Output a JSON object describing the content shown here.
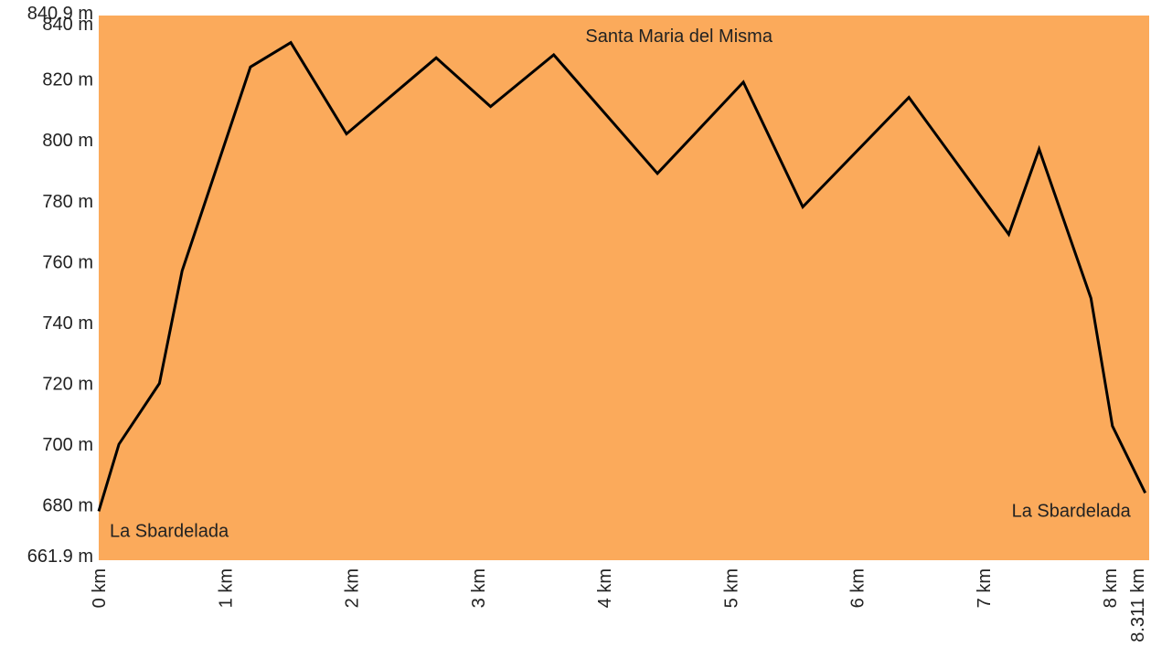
{
  "chart_data": {
    "type": "area",
    "title": "",
    "xlabel": "",
    "ylabel": "",
    "xlim": [
      0,
      8.311
    ],
    "ylim": [
      661.9,
      840.9
    ],
    "colors": {
      "fill": "#FBAA5B",
      "line": "#000000",
      "text": "#222222"
    },
    "y_ticks": [
      {
        "value": 840.9,
        "label": "840.9 m"
      },
      {
        "value": 840,
        "label": "840 m"
      },
      {
        "value": 820,
        "label": "820 m"
      },
      {
        "value": 800,
        "label": "800 m"
      },
      {
        "value": 780,
        "label": "780 m"
      },
      {
        "value": 760,
        "label": "760 m"
      },
      {
        "value": 740,
        "label": "740 m"
      },
      {
        "value": 720,
        "label": "720 m"
      },
      {
        "value": 700,
        "label": "700 m"
      },
      {
        "value": 680,
        "label": "680 m"
      },
      {
        "value": 661.9,
        "label": "661.9 m"
      }
    ],
    "x_ticks": [
      {
        "value": 0,
        "label": "0 km"
      },
      {
        "value": 1,
        "label": "1 km"
      },
      {
        "value": 2,
        "label": "2 km"
      },
      {
        "value": 3,
        "label": "3 km"
      },
      {
        "value": 4,
        "label": "4 km"
      },
      {
        "value": 5,
        "label": "5 km"
      },
      {
        "value": 6,
        "label": "6 km"
      },
      {
        "value": 7,
        "label": "7 km"
      },
      {
        "value": 8,
        "label": "8 km"
      },
      {
        "value": 8.311,
        "label": "8.311 km"
      }
    ],
    "series": [
      {
        "x": [
          0,
          0.16,
          0.48,
          0.66,
          1.2,
          1.52,
          1.96,
          2.67,
          3.1,
          3.6,
          4.42,
          5.1,
          5.57,
          6.41,
          7.2,
          7.44,
          7.85,
          8.02,
          8.28
        ],
        "y": [
          678,
          700,
          720,
          757,
          824,
          832,
          802,
          827,
          811,
          828,
          789,
          819,
          778,
          814,
          769,
          797,
          748,
          706,
          684
        ]
      }
    ],
    "annotations": [
      {
        "text": "La Sbardelada",
        "x": 0,
        "y": 678,
        "anchor": "start"
      },
      {
        "text": "Santa Maria del Misma",
        "x": 3.6,
        "y": 828,
        "anchor": "middle"
      },
      {
        "text": "La Sbardelada",
        "x": 8.28,
        "y": 684,
        "anchor": "end"
      }
    ]
  }
}
